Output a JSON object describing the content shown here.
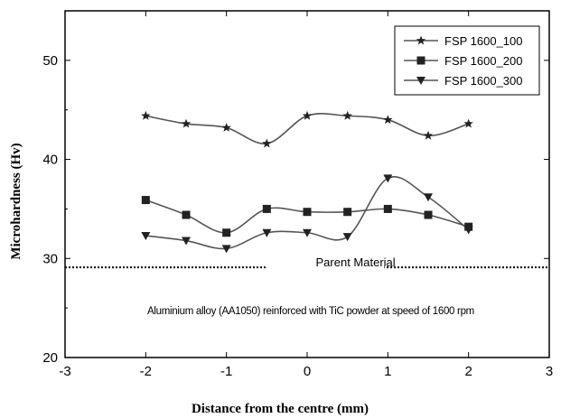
{
  "chart_data": {
    "type": "line",
    "xlabel": "Distance from the centre (mm)",
    "ylabel": "Microhardness (Hv)",
    "xlim": [
      -3,
      3
    ],
    "ylim": [
      20,
      55
    ],
    "xticks": [
      "-3",
      "-2",
      "-1",
      "0",
      "1",
      "2",
      "3"
    ],
    "yticks": [
      "20",
      "30",
      "40",
      "50"
    ],
    "grid": false,
    "legend_position": "top-right",
    "x": [
      -2,
      -1.5,
      -1,
      -0.5,
      0,
      0.5,
      1,
      1.5,
      2
    ],
    "series": [
      {
        "name": "FSP 1600_100",
        "marker": "star",
        "values": [
          44.4,
          43.6,
          43.2,
          41.6,
          44.4,
          44.4,
          44.0,
          42.4,
          43.6
        ]
      },
      {
        "name": "FSP 1600_200",
        "marker": "square",
        "values": [
          35.9,
          34.4,
          32.6,
          35.0,
          34.7,
          34.7,
          35.0,
          34.4,
          33.2
        ]
      },
      {
        "name": "FSP 1600_300",
        "marker": "triangle-down",
        "values": [
          32.3,
          31.8,
          31.0,
          32.6,
          32.6,
          32.2,
          38.1,
          36.2,
          32.9
        ]
      }
    ],
    "reference_line": {
      "label": "Parent Material",
      "value": 29.1
    },
    "annotation": "Aluminium alloy (AA1050) reinforced with TiC powder at speed of 1600 rpm",
    "series_color": "#555555",
    "marker_color": "#222222"
  }
}
